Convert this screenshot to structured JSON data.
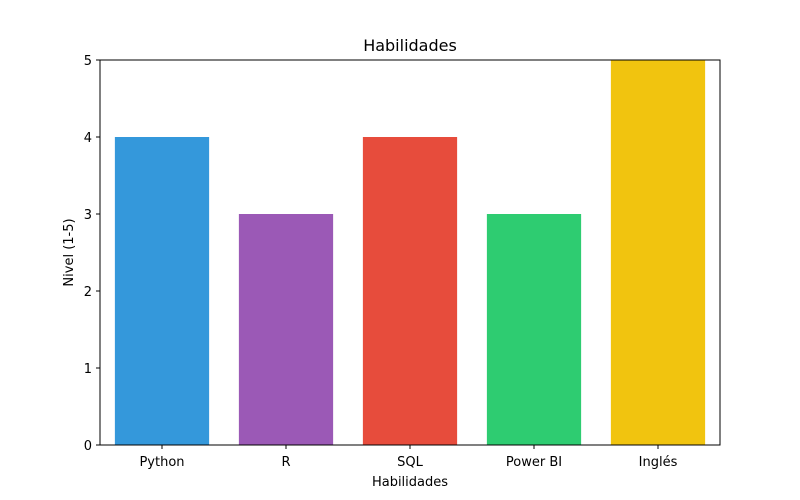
{
  "chart_data": {
    "type": "bar",
    "title": "Habilidades",
    "xlabel": "Habilidades",
    "ylabel": "Nivel (1-5)",
    "categories": [
      "Python",
      "R",
      "SQL",
      "Power BI",
      "Inglés"
    ],
    "values": [
      4,
      3,
      4,
      3,
      5
    ],
    "colors": [
      "#3498db",
      "#9b59b6",
      "#e74c3c",
      "#2ecc71",
      "#f1c40f"
    ],
    "ylim": [
      0,
      5
    ],
    "yticks": [
      "0",
      "1",
      "2",
      "3",
      "4",
      "5"
    ],
    "grid": false,
    "legend": "none"
  }
}
